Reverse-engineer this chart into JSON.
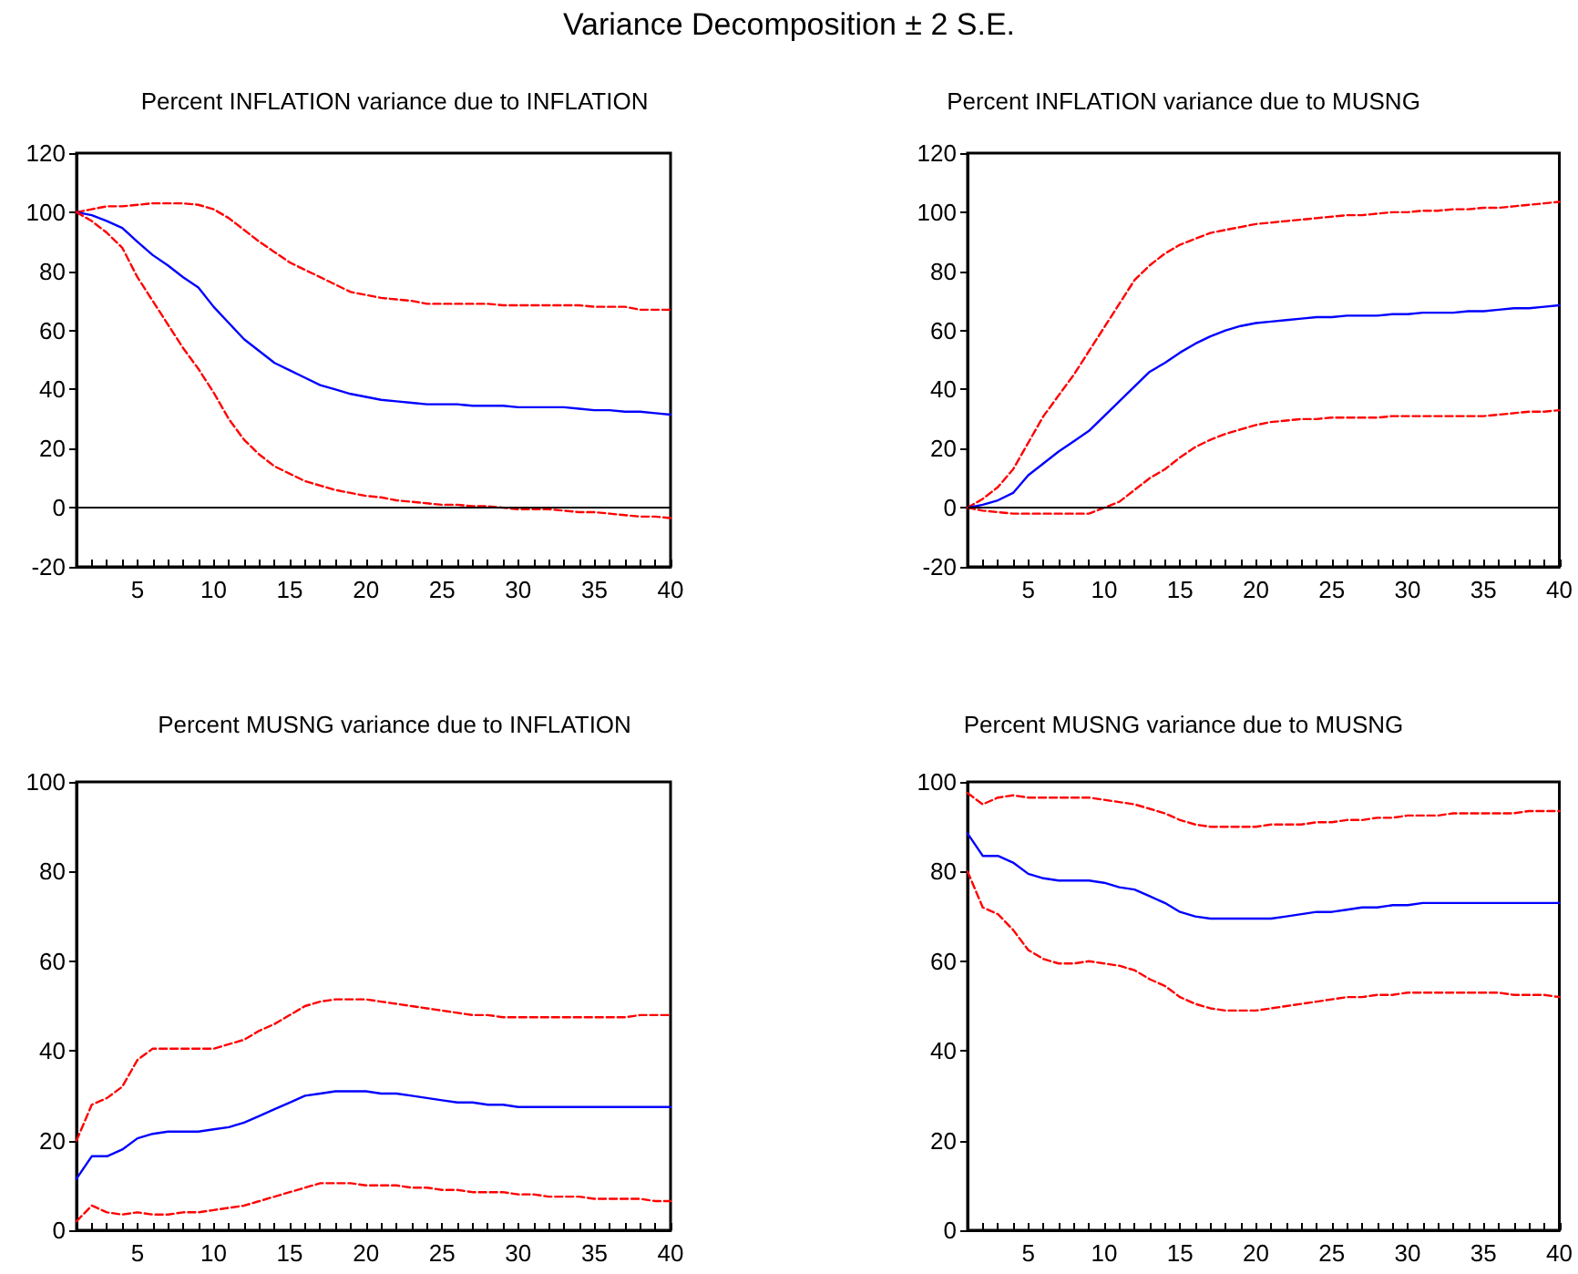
{
  "chart_data": [
    {
      "type": "line",
      "title": "Percent INFLATION variance due to INFLATION",
      "annotations": [
        "Variance Decomposition ± 2 S.E."
      ],
      "x": [
        1,
        2,
        3,
        4,
        5,
        6,
        7,
        8,
        9,
        10,
        11,
        12,
        13,
        14,
        15,
        16,
        17,
        18,
        19,
        20,
        21,
        22,
        23,
        24,
        25,
        26,
        27,
        28,
        29,
        30,
        31,
        32,
        33,
        34,
        35,
        36,
        37,
        38,
        39,
        40
      ],
      "xlim": [
        1,
        40
      ],
      "xticks": [
        {
          "value": 1,
          "label": null
        },
        {
          "value": 2,
          "label": null
        },
        {
          "value": 3,
          "label": null
        },
        {
          "value": 4,
          "label": null
        },
        5,
        {
          "value": 6,
          "label": null
        },
        {
          "value": 7,
          "label": null
        },
        {
          "value": 8,
          "label": null
        },
        {
          "value": 9,
          "label": null
        },
        10,
        {
          "value": 11,
          "label": null
        },
        {
          "value": 12,
          "label": null
        },
        {
          "value": 13,
          "label": null
        },
        {
          "value": 14,
          "label": null
        },
        15,
        {
          "value": 16,
          "label": null
        },
        {
          "value": 17,
          "label": null
        },
        {
          "value": 18,
          "label": null
        },
        {
          "value": 19,
          "label": null
        },
        20,
        {
          "value": 21,
          "label": null
        },
        {
          "value": 22,
          "label": null
        },
        {
          "value": 23,
          "label": null
        },
        {
          "value": 24,
          "label": null
        },
        25,
        {
          "value": 26,
          "label": null
        },
        {
          "value": 27,
          "label": null
        },
        {
          "value": 28,
          "label": null
        },
        {
          "value": 29,
          "label": null
        },
        30,
        {
          "value": 31,
          "label": null
        },
        {
          "value": 32,
          "label": null
        },
        {
          "value": 33,
          "label": null
        },
        {
          "value": 34,
          "label": null
        },
        35,
        {
          "value": 36,
          "label": null
        },
        {
          "value": 37,
          "label": null
        },
        {
          "value": 38,
          "label": null
        },
        {
          "value": 39,
          "label": null
        },
        40
      ],
      "ylim": [
        -20,
        120
      ],
      "yticks": [
        -20,
        0,
        20,
        40,
        60,
        80,
        100,
        120
      ],
      "grid": false,
      "marker": "none",
      "ref_lines": [
        {
          "axis": "y",
          "value": 0,
          "color": "#000000"
        }
      ],
      "series": [
        {
          "color": "#ff0000",
          "line_style": "dashed",
          "values": [
            100,
            101,
            102,
            102,
            102.5,
            103,
            103,
            103,
            102.5,
            101,
            98,
            94,
            90,
            86.5,
            83,
            80.5,
            78,
            75.5,
            73,
            72,
            71,
            70.5,
            70,
            69,
            69,
            69,
            69,
            69,
            68.5,
            68.5,
            68.5,
            68.5,
            68.5,
            68.5,
            68,
            68,
            68,
            67,
            67,
            67
          ]
        },
        {
          "color": "#0000ff",
          "line_style": "solid",
          "values": [
            100,
            99,
            97,
            94.7,
            90,
            85.5,
            82,
            78,
            74.5,
            68,
            62.5,
            57,
            53,
            49,
            46.5,
            44,
            41.5,
            40,
            38.5,
            37.5,
            36.5,
            36,
            35.5,
            35,
            35,
            35,
            34.5,
            34.5,
            34.5,
            34,
            34,
            34,
            34,
            33.5,
            33,
            33,
            32.5,
            32.5,
            32,
            31.5
          ]
        },
        {
          "color": "#ff0000",
          "line_style": "dashed",
          "values": [
            100,
            97,
            93,
            88,
            78,
            70,
            62,
            54,
            47,
            39,
            30,
            23,
            18,
            14,
            11.5,
            9,
            7.5,
            6,
            5,
            4,
            3.5,
            2.5,
            2,
            1.5,
            1,
            1,
            0.5,
            0.5,
            0,
            -0.5,
            -0.5,
            -0.5,
            -1,
            -1.5,
            -1.5,
            -2,
            -2.5,
            -3,
            -3,
            -3.5
          ]
        }
      ]
    },
    {
      "type": "line",
      "title": "Percent INFLATION variance due to MUSNG",
      "x": [
        1,
        2,
        3,
        4,
        5,
        6,
        7,
        8,
        9,
        10,
        11,
        12,
        13,
        14,
        15,
        16,
        17,
        18,
        19,
        20,
        21,
        22,
        23,
        24,
        25,
        26,
        27,
        28,
        29,
        30,
        31,
        32,
        33,
        34,
        35,
        36,
        37,
        38,
        39,
        40
      ],
      "xlim": [
        1,
        40
      ],
      "xticks": [
        {
          "value": 1,
          "label": null
        },
        {
          "value": 2,
          "label": null
        },
        {
          "value": 3,
          "label": null
        },
        {
          "value": 4,
          "label": null
        },
        5,
        {
          "value": 6,
          "label": null
        },
        {
          "value": 7,
          "label": null
        },
        {
          "value": 8,
          "label": null
        },
        {
          "value": 9,
          "label": null
        },
        10,
        {
          "value": 11,
          "label": null
        },
        {
          "value": 12,
          "label": null
        },
        {
          "value": 13,
          "label": null
        },
        {
          "value": 14,
          "label": null
        },
        15,
        {
          "value": 16,
          "label": null
        },
        {
          "value": 17,
          "label": null
        },
        {
          "value": 18,
          "label": null
        },
        {
          "value": 19,
          "label": null
        },
        20,
        {
          "value": 21,
          "label": null
        },
        {
          "value": 22,
          "label": null
        },
        {
          "value": 23,
          "label": null
        },
        {
          "value": 24,
          "label": null
        },
        25,
        {
          "value": 26,
          "label": null
        },
        {
          "value": 27,
          "label": null
        },
        {
          "value": 28,
          "label": null
        },
        {
          "value": 29,
          "label": null
        },
        30,
        {
          "value": 31,
          "label": null
        },
        {
          "value": 32,
          "label": null
        },
        {
          "value": 33,
          "label": null
        },
        {
          "value": 34,
          "label": null
        },
        35,
        {
          "value": 36,
          "label": null
        },
        {
          "value": 37,
          "label": null
        },
        {
          "value": 38,
          "label": null
        },
        {
          "value": 39,
          "label": null
        },
        40
      ],
      "ylim": [
        -20,
        120
      ],
      "yticks": [
        -20,
        0,
        20,
        40,
        60,
        80,
        100,
        120
      ],
      "grid": false,
      "marker": "none",
      "ref_lines": [
        {
          "axis": "y",
          "value": 0,
          "color": "#000000"
        }
      ],
      "series": [
        {
          "color": "#ff0000",
          "line_style": "dashed",
          "values": [
            0,
            3,
            7,
            13,
            22,
            31,
            38,
            45,
            53,
            61,
            69,
            77,
            82,
            86,
            89,
            91,
            93,
            94,
            95,
            96,
            96.5,
            97,
            97.5,
            98,
            98.5,
            99,
            99,
            99.5,
            100,
            100,
            100.5,
            100.5,
            101,
            101,
            101.5,
            101.5,
            102,
            102.5,
            103,
            103.5
          ]
        },
        {
          "color": "#0000ff",
          "line_style": "solid",
          "values": [
            0,
            1,
            2.5,
            5,
            11,
            15,
            19,
            22.5,
            26,
            31,
            36,
            41,
            46,
            49,
            52.5,
            55.5,
            58,
            60,
            61.5,
            62.5,
            63,
            63.5,
            64,
            64.5,
            64.5,
            65,
            65,
            65,
            65.5,
            65.5,
            66,
            66,
            66,
            66.5,
            66.5,
            67,
            67.5,
            67.5,
            68,
            68.5
          ]
        },
        {
          "color": "#ff0000",
          "line_style": "dashed",
          "values": [
            0,
            -1,
            -1.5,
            -2,
            -2,
            -2,
            -2,
            -2,
            -2,
            0,
            2,
            6,
            10,
            13,
            17,
            20.5,
            23,
            25,
            26.5,
            28,
            29,
            29.5,
            30,
            30,
            30.5,
            30.5,
            30.5,
            30.5,
            31,
            31,
            31,
            31,
            31,
            31,
            31,
            31.5,
            32,
            32.5,
            32.5,
            33
          ]
        }
      ]
    },
    {
      "type": "line",
      "title": "Percent MUSNG variance due to INFLATION",
      "x": [
        1,
        2,
        3,
        4,
        5,
        6,
        7,
        8,
        9,
        10,
        11,
        12,
        13,
        14,
        15,
        16,
        17,
        18,
        19,
        20,
        21,
        22,
        23,
        24,
        25,
        26,
        27,
        28,
        29,
        30,
        31,
        32,
        33,
        34,
        35,
        36,
        37,
        38,
        39,
        40
      ],
      "xlim": [
        1,
        40
      ],
      "xticks": [
        {
          "value": 1,
          "label": null
        },
        {
          "value": 2,
          "label": null
        },
        {
          "value": 3,
          "label": null
        },
        {
          "value": 4,
          "label": null
        },
        5,
        {
          "value": 6,
          "label": null
        },
        {
          "value": 7,
          "label": null
        },
        {
          "value": 8,
          "label": null
        },
        {
          "value": 9,
          "label": null
        },
        10,
        {
          "value": 11,
          "label": null
        },
        {
          "value": 12,
          "label": null
        },
        {
          "value": 13,
          "label": null
        },
        {
          "value": 14,
          "label": null
        },
        15,
        {
          "value": 16,
          "label": null
        },
        {
          "value": 17,
          "label": null
        },
        {
          "value": 18,
          "label": null
        },
        {
          "value": 19,
          "label": null
        },
        20,
        {
          "value": 21,
          "label": null
        },
        {
          "value": 22,
          "label": null
        },
        {
          "value": 23,
          "label": null
        },
        {
          "value": 24,
          "label": null
        },
        25,
        {
          "value": 26,
          "label": null
        },
        {
          "value": 27,
          "label": null
        },
        {
          "value": 28,
          "label": null
        },
        {
          "value": 29,
          "label": null
        },
        30,
        {
          "value": 31,
          "label": null
        },
        {
          "value": 32,
          "label": null
        },
        {
          "value": 33,
          "label": null
        },
        {
          "value": 34,
          "label": null
        },
        35,
        {
          "value": 36,
          "label": null
        },
        {
          "value": 37,
          "label": null
        },
        {
          "value": 38,
          "label": null
        },
        {
          "value": 39,
          "label": null
        },
        40
      ],
      "ylim": [
        0,
        100
      ],
      "yticks": [
        0,
        20,
        40,
        60,
        80,
        100
      ],
      "grid": false,
      "marker": "none",
      "series": [
        {
          "color": "#ff0000",
          "line_style": "dashed",
          "values": [
            20,
            28,
            29.5,
            32,
            38,
            40.5,
            40.5,
            40.5,
            40.5,
            40.5,
            41.5,
            42.5,
            44.5,
            46,
            48,
            50,
            51,
            51.5,
            51.5,
            51.5,
            51,
            50.5,
            50,
            49.5,
            49,
            48.5,
            48,
            48,
            47.5,
            47.5,
            47.5,
            47.5,
            47.5,
            47.5,
            47.5,
            47.5,
            47.5,
            48,
            48,
            48
          ]
        },
        {
          "color": "#0000ff",
          "line_style": "solid",
          "values": [
            11.5,
            16.5,
            16.5,
            18,
            20.5,
            21.5,
            22,
            22,
            22,
            22.5,
            23,
            24,
            25.5,
            27,
            28.5,
            30,
            30.5,
            31,
            31,
            31,
            30.5,
            30.5,
            30,
            29.5,
            29,
            28.5,
            28.5,
            28,
            28,
            27.5,
            27.5,
            27.5,
            27.5,
            27.5,
            27.5,
            27.5,
            27.5,
            27.5,
            27.5,
            27.5
          ]
        },
        {
          "color": "#ff0000",
          "line_style": "dashed",
          "values": [
            2,
            5.5,
            4,
            3.5,
            4,
            3.5,
            3.5,
            4,
            4,
            4.5,
            5,
            5.5,
            6.5,
            7.5,
            8.5,
            9.5,
            10.5,
            10.5,
            10.5,
            10,
            10,
            10,
            9.5,
            9.5,
            9,
            9,
            8.5,
            8.5,
            8.5,
            8,
            8,
            7.5,
            7.5,
            7.5,
            7,
            7,
            7,
            7,
            6.5,
            6.5
          ]
        }
      ]
    },
    {
      "type": "line",
      "title": "Percent MUSNG variance due to MUSNG",
      "x": [
        1,
        2,
        3,
        4,
        5,
        6,
        7,
        8,
        9,
        10,
        11,
        12,
        13,
        14,
        15,
        16,
        17,
        18,
        19,
        20,
        21,
        22,
        23,
        24,
        25,
        26,
        27,
        28,
        29,
        30,
        31,
        32,
        33,
        34,
        35,
        36,
        37,
        38,
        39,
        40
      ],
      "xlim": [
        1,
        40
      ],
      "xticks": [
        {
          "value": 1,
          "label": null
        },
        {
          "value": 2,
          "label": null
        },
        {
          "value": 3,
          "label": null
        },
        {
          "value": 4,
          "label": null
        },
        5,
        {
          "value": 6,
          "label": null
        },
        {
          "value": 7,
          "label": null
        },
        {
          "value": 8,
          "label": null
        },
        {
          "value": 9,
          "label": null
        },
        10,
        {
          "value": 11,
          "label": null
        },
        {
          "value": 12,
          "label": null
        },
        {
          "value": 13,
          "label": null
        },
        {
          "value": 14,
          "label": null
        },
        15,
        {
          "value": 16,
          "label": null
        },
        {
          "value": 17,
          "label": null
        },
        {
          "value": 18,
          "label": null
        },
        {
          "value": 19,
          "label": null
        },
        20,
        {
          "value": 21,
          "label": null
        },
        {
          "value": 22,
          "label": null
        },
        {
          "value": 23,
          "label": null
        },
        {
          "value": 24,
          "label": null
        },
        25,
        {
          "value": 26,
          "label": null
        },
        {
          "value": 27,
          "label": null
        },
        {
          "value": 28,
          "label": null
        },
        {
          "value": 29,
          "label": null
        },
        30,
        {
          "value": 31,
          "label": null
        },
        {
          "value": 32,
          "label": null
        },
        {
          "value": 33,
          "label": null
        },
        {
          "value": 34,
          "label": null
        },
        35,
        {
          "value": 36,
          "label": null
        },
        {
          "value": 37,
          "label": null
        },
        {
          "value": 38,
          "label": null
        },
        {
          "value": 39,
          "label": null
        },
        40
      ],
      "ylim": [
        0,
        100
      ],
      "yticks": [
        0,
        20,
        40,
        60,
        80,
        100
      ],
      "grid": false,
      "marker": "none",
      "series": [
        {
          "color": "#ff0000",
          "line_style": "dashed",
          "values": [
            97.5,
            95,
            96.5,
            97,
            96.5,
            96.5,
            96.5,
            96.5,
            96.5,
            96,
            95.5,
            95,
            94,
            93,
            91.5,
            90.5,
            90,
            90,
            90,
            90,
            90.5,
            90.5,
            90.5,
            91,
            91,
            91.5,
            91.5,
            92,
            92,
            92.5,
            92.5,
            92.5,
            93,
            93,
            93,
            93,
            93,
            93.5,
            93.5,
            93.5
          ]
        },
        {
          "color": "#0000ff",
          "line_style": "solid",
          "values": [
            88.5,
            83.5,
            83.5,
            82,
            79.5,
            78.5,
            78,
            78,
            78,
            77.5,
            76.5,
            76,
            74.5,
            73,
            71,
            70,
            69.5,
            69.5,
            69.5,
            69.5,
            69.5,
            70,
            70.5,
            71,
            71,
            71.5,
            72,
            72,
            72.5,
            72.5,
            73,
            73,
            73,
            73,
            73,
            73,
            73,
            73,
            73,
            73
          ]
        },
        {
          "color": "#ff0000",
          "line_style": "dashed",
          "values": [
            80,
            72,
            70.5,
            67,
            62.5,
            60.5,
            59.5,
            59.5,
            60,
            59.5,
            59,
            58,
            56,
            54.5,
            52,
            50.5,
            49.5,
            49,
            49,
            49,
            49.5,
            50,
            50.5,
            51,
            51.5,
            52,
            52,
            52.5,
            52.5,
            53,
            53,
            53,
            53,
            53,
            53,
            53,
            52.5,
            52.5,
            52.5,
            52
          ]
        }
      ]
    }
  ]
}
